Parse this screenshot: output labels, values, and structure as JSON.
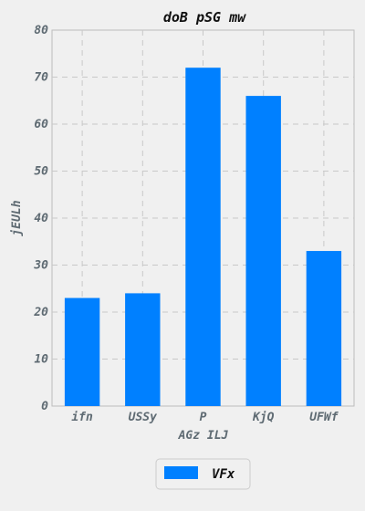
{
  "chart_data": {
    "type": "bar",
    "title": "doB  pSG mw",
    "xlabel": "AGz ILJ",
    "ylabel": "jEULh",
    "categories": [
      "ifn",
      "USSy",
      "P",
      "KjQ",
      "UFWf"
    ],
    "series": [
      {
        "name": "VFx",
        "values": [
          23,
          24,
          72,
          66,
          33
        ],
        "color": "#0080ff"
      }
    ],
    "ylim": [
      0,
      80
    ],
    "yticks": [
      "0",
      "10",
      "20",
      "30",
      "40",
      "50",
      "60",
      "70",
      "80"
    ],
    "grid": true,
    "legend_position": "bottom-center"
  }
}
